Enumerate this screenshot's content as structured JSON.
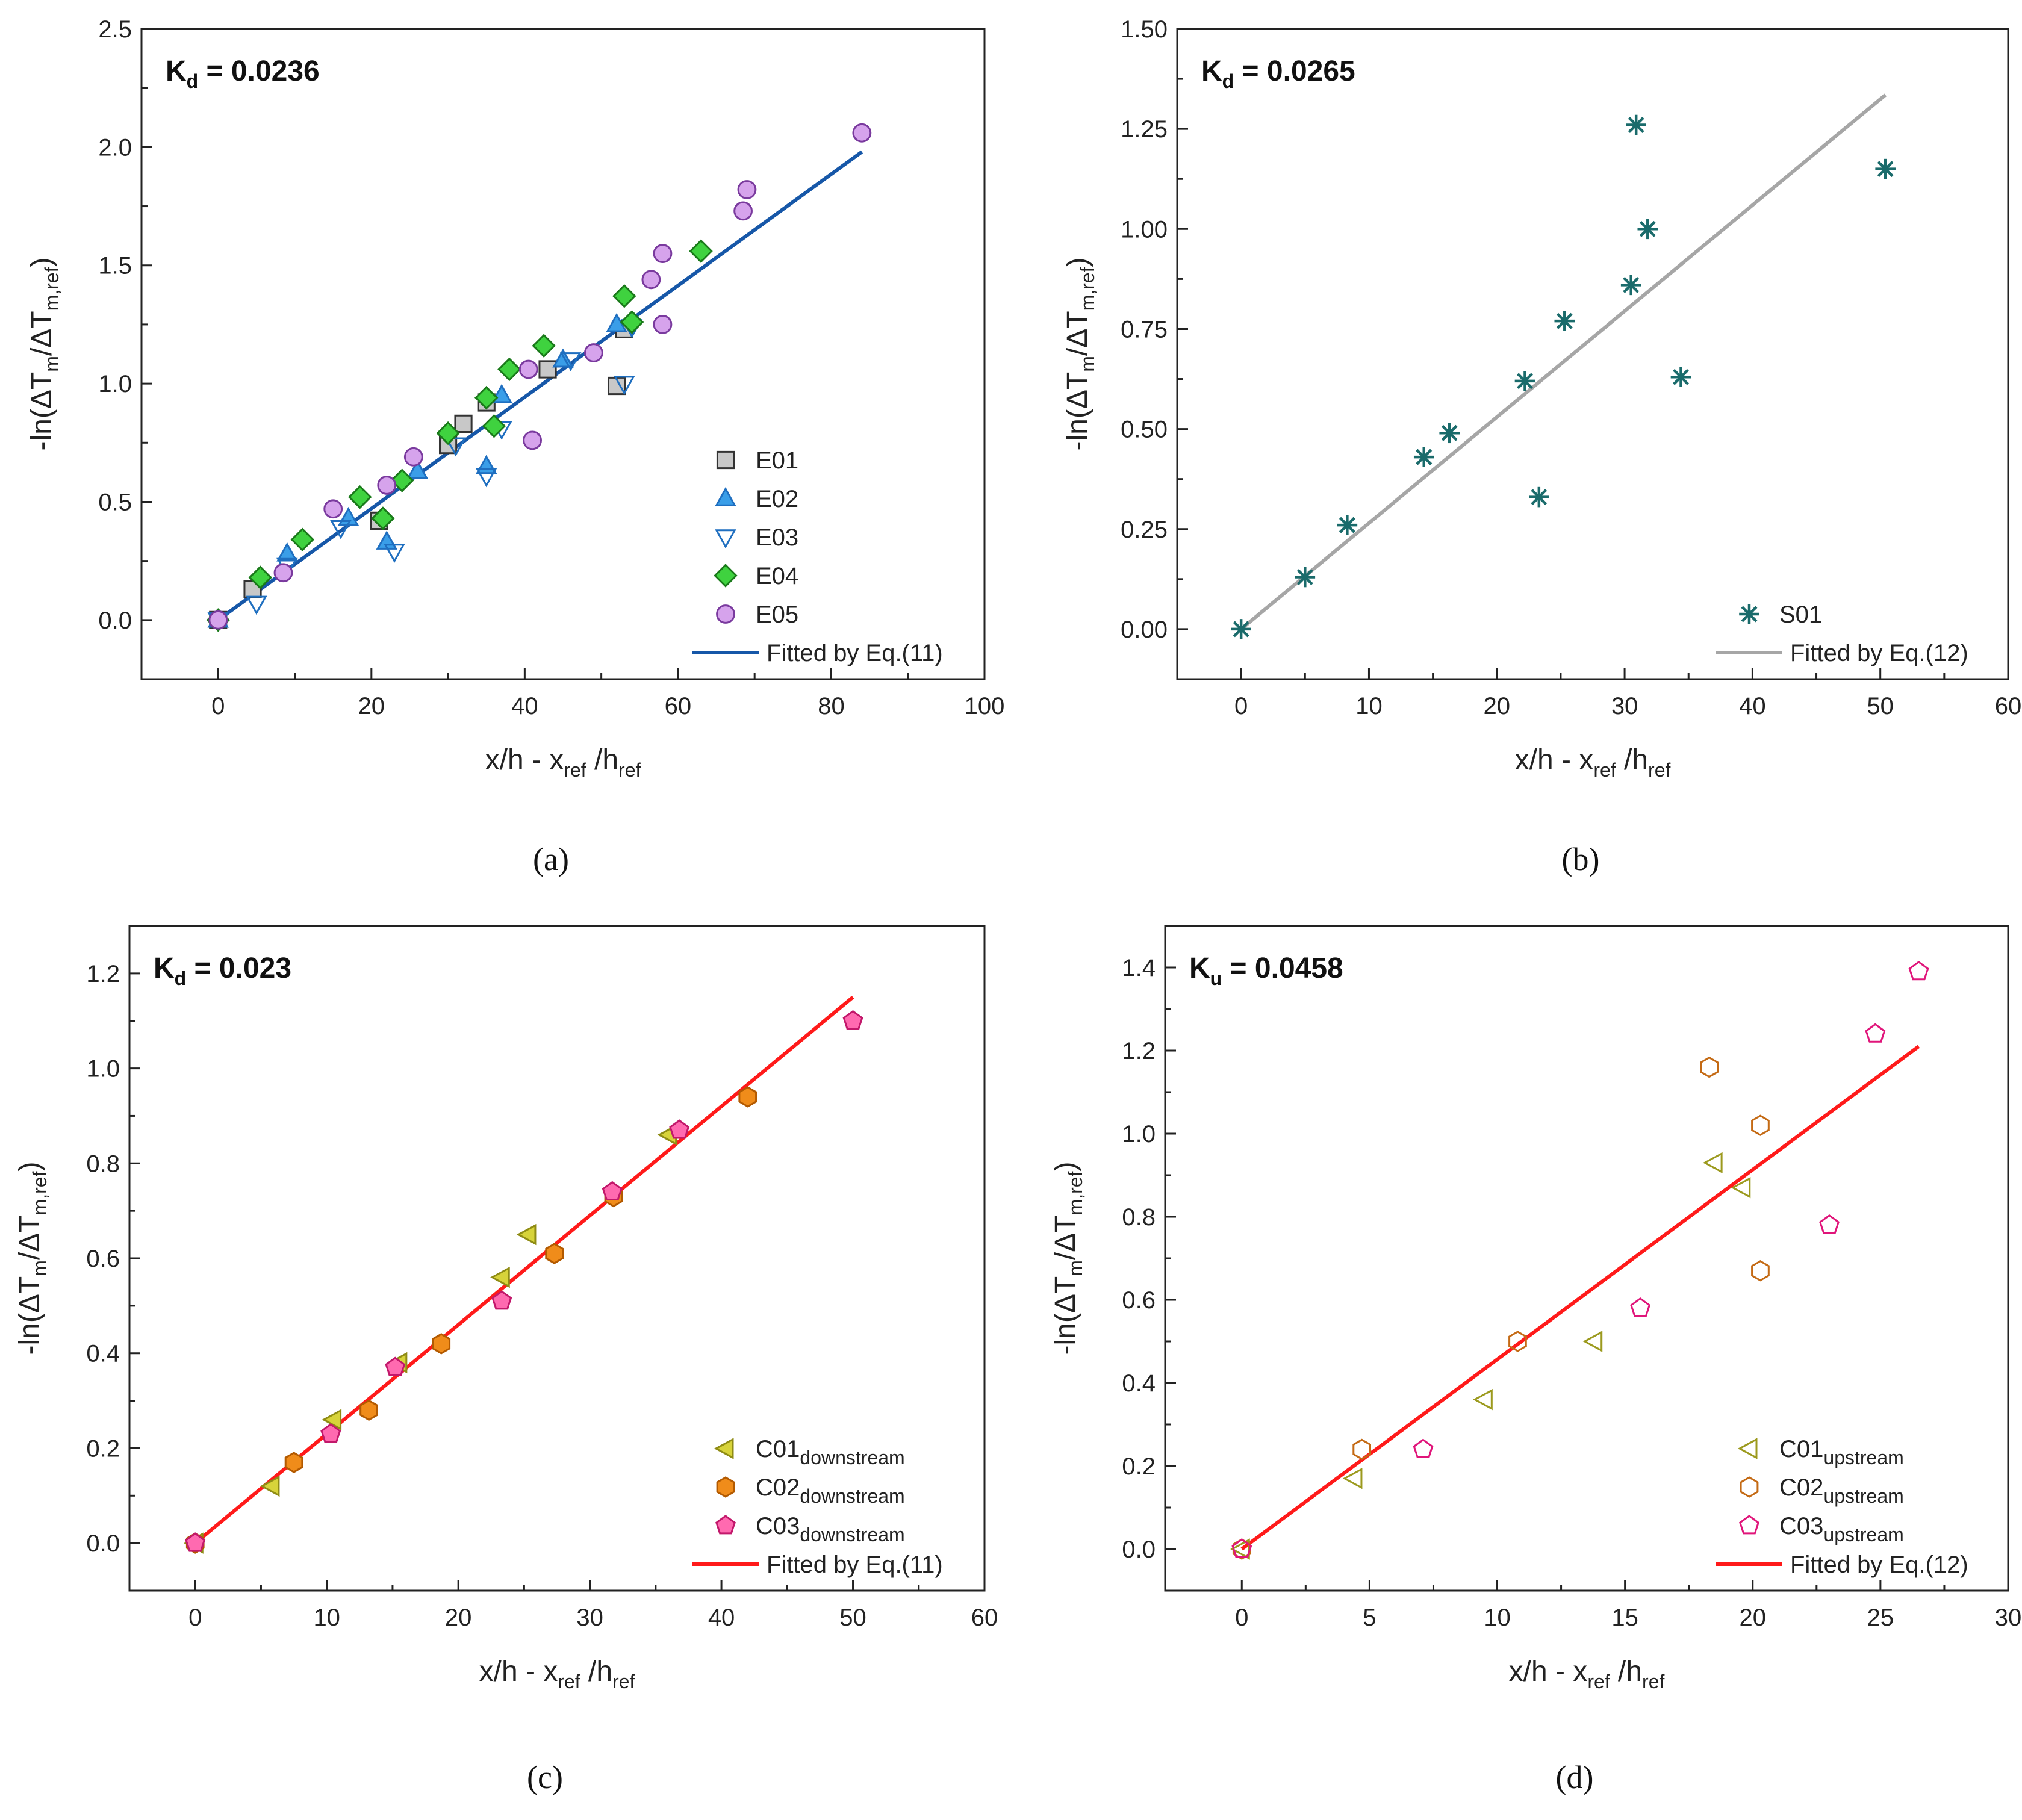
{
  "chart_data": [
    {
      "id": "a",
      "type": "scatter",
      "panel_label": "(a)",
      "k_label": "K",
      "k_sub": "d",
      "k_value": " = 0.0236",
      "xlabel": {
        "main": "x/h - x",
        "sub1": "ref",
        "mid": " /h",
        "sub2": "ref"
      },
      "ylabel": {
        "pre": "-ln(ΔT",
        "sub1": "m",
        "mid": "/ΔT",
        "sub2": "m,ref",
        "post": ")"
      },
      "xlim": [
        -10,
        100
      ],
      "ylim": [
        -0.25,
        2.5
      ],
      "xticks": [
        0,
        20,
        40,
        60,
        80,
        100
      ],
      "yticks": [
        0.0,
        0.5,
        1.0,
        1.5,
        2.0,
        2.5
      ],
      "xtick_labels": [
        "0",
        "20",
        "40",
        "60",
        "80",
        "100"
      ],
      "ytick_labels": [
        "0.0",
        "0.5",
        "1.0",
        "1.5",
        "2.0",
        "2.5"
      ],
      "legend_position": "bottom-right",
      "series": [
        {
          "name": "E01",
          "marker": "square",
          "fill": "#c8c8c8",
          "stroke": "#333333",
          "points": [
            [
              0,
              0
            ],
            [
              4.5,
              0.13
            ],
            [
              21,
              0.42
            ],
            [
              30,
              0.74
            ],
            [
              32,
              0.83
            ],
            [
              35,
              0.92
            ],
            [
              43,
              1.06
            ],
            [
              52,
              0.99
            ],
            [
              53,
              1.23
            ]
          ]
        },
        {
          "name": "E02",
          "marker": "triangle-up",
          "fill": "#3a9ee8",
          "stroke": "#1f6fc0",
          "points": [
            [
              0,
              0
            ],
            [
              9,
              0.28
            ],
            [
              17,
              0.43
            ],
            [
              22,
              0.33
            ],
            [
              26,
              0.63
            ],
            [
              35,
              0.65
            ],
            [
              37,
              0.95
            ],
            [
              45,
              1.1
            ],
            [
              52,
              1.25
            ]
          ]
        },
        {
          "name": "E03",
          "marker": "triangle-down",
          "fill": "none",
          "stroke": "#1f6fc0",
          "points": [
            [
              0,
              0
            ],
            [
              5,
              0.07
            ],
            [
              9,
              0.23
            ],
            [
              16,
              0.39
            ],
            [
              23,
              0.29
            ],
            [
              31,
              0.74
            ],
            [
              35,
              0.61
            ],
            [
              37,
              0.81
            ],
            [
              46,
              1.1
            ],
            [
              53,
              1.0
            ],
            [
              54,
              1.24
            ]
          ]
        },
        {
          "name": "E04",
          "marker": "diamond",
          "fill": "#3fd23f",
          "stroke": "#1a7a1a",
          "points": [
            [
              0,
              0
            ],
            [
              5.5,
              0.18
            ],
            [
              11,
              0.34
            ],
            [
              18.5,
              0.52
            ],
            [
              21.5,
              0.43
            ],
            [
              24,
              0.59
            ],
            [
              30,
              0.79
            ],
            [
              35,
              0.94
            ],
            [
              36,
              0.82
            ],
            [
              38,
              1.06
            ],
            [
              42.5,
              1.16
            ],
            [
              53,
              1.37
            ],
            [
              54,
              1.26
            ],
            [
              63,
              1.56
            ]
          ]
        },
        {
          "name": "E05",
          "marker": "circle",
          "fill": "#d6a3ec",
          "stroke": "#7a3a9e",
          "points": [
            [
              0,
              0
            ],
            [
              8.5,
              0.2
            ],
            [
              15,
              0.47
            ],
            [
              22,
              0.57
            ],
            [
              25.5,
              0.69
            ],
            [
              40.5,
              1.06
            ],
            [
              41,
              0.76
            ],
            [
              49,
              1.13
            ],
            [
              56.5,
              1.44
            ],
            [
              58,
              1.55
            ],
            [
              58,
              1.25
            ],
            [
              68.5,
              1.73
            ],
            [
              69,
              1.82
            ],
            [
              84,
              2.06
            ]
          ]
        }
      ],
      "fit": {
        "name": "Fitted by Eq.(11)",
        "color": "#1657a8",
        "from": [
          0,
          0
        ],
        "to": [
          84,
          1.98
        ]
      }
    },
    {
      "id": "b",
      "type": "scatter",
      "panel_label": "(b)",
      "k_label": "K",
      "k_sub": "d",
      "k_value": " = 0.0265",
      "xlabel": {
        "main": "x/h - x",
        "sub1": "ref",
        "mid": " /h",
        "sub2": "ref"
      },
      "ylabel": {
        "pre": "-ln(ΔT",
        "sub1": "m",
        "mid": "/ΔT",
        "sub2": "m,ref",
        "post": ")"
      },
      "xlim": [
        -5,
        60
      ],
      "ylim": [
        -0.125,
        1.5
      ],
      "xticks": [
        0,
        10,
        20,
        30,
        40,
        50,
        60
      ],
      "yticks": [
        0.0,
        0.25,
        0.5,
        0.75,
        1.0,
        1.25,
        1.5
      ],
      "xtick_labels": [
        "0",
        "10",
        "20",
        "30",
        "40",
        "50",
        "60"
      ],
      "ytick_labels": [
        "0.00",
        "0.25",
        "0.50",
        "0.75",
        "1.00",
        "1.25",
        "1.50"
      ],
      "legend_position": "bottom-right",
      "series": [
        {
          "name": "S01",
          "marker": "asterisk",
          "fill": "none",
          "stroke": "#1a6b6b",
          "points": [
            [
              0,
              0
            ],
            [
              5,
              0.13
            ],
            [
              8.3,
              0.26
            ],
            [
              14.3,
              0.43
            ],
            [
              16.3,
              0.49
            ],
            [
              22.2,
              0.62
            ],
            [
              23.3,
              0.33
            ],
            [
              25.3,
              0.77
            ],
            [
              30.5,
              0.86
            ],
            [
              30.9,
              1.26
            ],
            [
              31.8,
              1.0
            ],
            [
              34.4,
              0.63
            ],
            [
              50.4,
              1.15
            ]
          ]
        }
      ],
      "fit": {
        "name": "Fitted by Eq.(12)",
        "color": "#a6a6a6",
        "from": [
          0,
          0
        ],
        "to": [
          50.4,
          1.335
        ]
      }
    },
    {
      "id": "c",
      "type": "scatter",
      "panel_label": "(c)",
      "k_label": "K",
      "k_sub": "d",
      "k_value": " = 0.023",
      "xlabel": {
        "main": "x/h - x",
        "sub1": "ref",
        "mid": " /h",
        "sub2": "ref"
      },
      "ylabel": {
        "pre": "-ln(ΔT",
        "sub1": "m",
        "mid": "/ΔT",
        "sub2": "m,ref",
        "post": ")"
      },
      "xlim": [
        -5,
        60
      ],
      "ylim": [
        -0.1,
        1.3
      ],
      "xticks": [
        0,
        10,
        20,
        30,
        40,
        50,
        60
      ],
      "yticks": [
        0.0,
        0.2,
        0.4,
        0.6,
        0.8,
        1.0,
        1.2
      ],
      "xtick_labels": [
        "0",
        "10",
        "20",
        "30",
        "40",
        "50",
        "60"
      ],
      "ytick_labels": [
        "0.0",
        "0.2",
        "0.4",
        "0.6",
        "0.8",
        "1.0",
        "1.2"
      ],
      "legend_position": "bottom-right",
      "series": [
        {
          "name": "C01",
          "sub": "downstream",
          "marker": "triangle-left",
          "fill": "#d7d33a",
          "stroke": "#8f8c14",
          "points": [
            [
              0,
              0
            ],
            [
              5.8,
              0.12
            ],
            [
              10.5,
              0.26
            ],
            [
              15.5,
              0.38
            ],
            [
              23.3,
              0.56
            ],
            [
              25.3,
              0.65
            ],
            [
              36,
              0.86
            ]
          ]
        },
        {
          "name": "C02",
          "sub": "downstream",
          "marker": "hexagon",
          "fill": "#f08c1a",
          "stroke": "#b35a00",
          "points": [
            [
              0,
              0
            ],
            [
              7.5,
              0.17
            ],
            [
              13.2,
              0.28
            ],
            [
              18.7,
              0.42
            ],
            [
              27.3,
              0.61
            ],
            [
              31.8,
              0.73
            ],
            [
              42,
              0.94
            ]
          ]
        },
        {
          "name": "C03",
          "sub": "downstream",
          "marker": "pentagon",
          "fill": "#ff6ab0",
          "stroke": "#c2186b",
          "points": [
            [
              0,
              0
            ],
            [
              10.3,
              0.23
            ],
            [
              15.2,
              0.37
            ],
            [
              23.3,
              0.51
            ],
            [
              31.7,
              0.74
            ],
            [
              36.8,
              0.87
            ],
            [
              50,
              1.1
            ]
          ]
        }
      ],
      "fit": {
        "name": "Fitted by Eq.(11)",
        "color": "#ff1a1a",
        "from": [
          0,
          0
        ],
        "to": [
          50,
          1.15
        ]
      }
    },
    {
      "id": "d",
      "type": "scatter",
      "panel_label": "(d)",
      "k_label": "K",
      "k_sub": "u",
      "k_value": " = 0.0458",
      "xlabel": {
        "main": "x/h - x",
        "sub1": "ref",
        "mid": " /h",
        "sub2": "ref"
      },
      "ylabel": {
        "pre": "-ln(ΔT",
        "sub1": "m",
        "mid": "/ΔT",
        "sub2": "m,ref",
        "post": ")"
      },
      "xlim": [
        -3,
        30
      ],
      "ylim": [
        -0.1,
        1.5
      ],
      "xticks": [
        0,
        5,
        10,
        15,
        20,
        25,
        30
      ],
      "yticks": [
        0.0,
        0.2,
        0.4,
        0.6,
        0.8,
        1.0,
        1.2,
        1.4
      ],
      "xtick_labels": [
        "0",
        "5",
        "10",
        "15",
        "20",
        "25",
        "30"
      ],
      "ytick_labels": [
        "0.0",
        "0.2",
        "0.4",
        "0.6",
        "0.8",
        "1.0",
        "1.2",
        "1.4"
      ],
      "legend_position": "bottom-right",
      "series": [
        {
          "name": "C01",
          "sub": "upstream",
          "marker": "triangle-left",
          "fill": "none",
          "stroke": "#9c9a1e",
          "points": [
            [
              0,
              0
            ],
            [
              4.4,
              0.17
            ],
            [
              9.5,
              0.36
            ],
            [
              13.8,
              0.5
            ],
            [
              18.5,
              0.93
            ],
            [
              19.6,
              0.87
            ]
          ]
        },
        {
          "name": "C02",
          "sub": "upstream",
          "marker": "hexagon",
          "fill": "none",
          "stroke": "#c46a14",
          "points": [
            [
              0,
              0
            ],
            [
              4.7,
              0.24
            ],
            [
              10.8,
              0.5
            ],
            [
              18.3,
              1.16
            ],
            [
              20.3,
              1.02
            ],
            [
              20.3,
              0.67
            ]
          ]
        },
        {
          "name": "C03",
          "sub": "upstream",
          "marker": "pentagon",
          "fill": "none",
          "stroke": "#e0157a",
          "points": [
            [
              0,
              0
            ],
            [
              7.1,
              0.24
            ],
            [
              15.6,
              0.58
            ],
            [
              23,
              0.78
            ],
            [
              24.8,
              1.24
            ],
            [
              26.5,
              1.39
            ]
          ]
        }
      ],
      "fit": {
        "name": "Fitted by Eq.(12)",
        "color": "#ff1a1a",
        "from": [
          0,
          0
        ],
        "to": [
          26.5,
          1.21
        ]
      }
    }
  ]
}
